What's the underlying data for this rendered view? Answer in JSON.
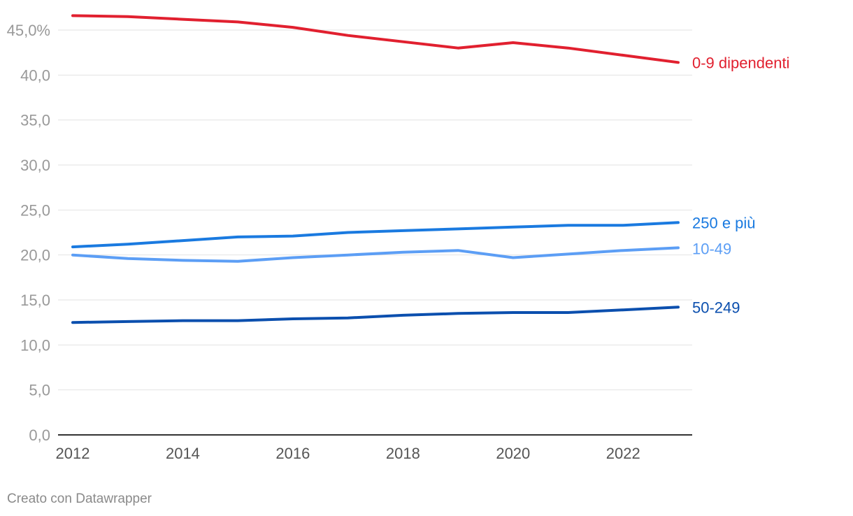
{
  "chart_data": {
    "type": "line",
    "x": [
      2012,
      2013,
      2014,
      2015,
      2016,
      2017,
      2018,
      2019,
      2020,
      2021,
      2022,
      2023
    ],
    "x_ticks": [
      "2012",
      "2014",
      "2016",
      "2018",
      "2020",
      "2022"
    ],
    "y_ticks": [
      "0,0",
      "5,0",
      "10,0",
      "15,0",
      "20,0",
      "25,0",
      "30,0",
      "35,0",
      "40,0",
      "45,0%"
    ],
    "ylim": [
      0,
      45
    ],
    "grid": true,
    "series": [
      {
        "name": "0-9 dipendenti",
        "color": "#e1202f",
        "values": [
          46.6,
          46.5,
          46.2,
          45.9,
          45.3,
          44.4,
          43.7,
          43.0,
          43.6,
          43.0,
          42.2,
          41.4
        ]
      },
      {
        "name": "250 e più",
        "color": "#1a7ae0",
        "values": [
          20.9,
          21.2,
          21.6,
          22.0,
          22.1,
          22.5,
          22.7,
          22.9,
          23.1,
          23.3,
          23.3,
          23.6
        ]
      },
      {
        "name": "10-49",
        "color": "#5c9ef5",
        "values": [
          20.0,
          19.6,
          19.4,
          19.3,
          19.7,
          20.0,
          20.3,
          20.5,
          19.7,
          20.1,
          20.5,
          20.8
        ]
      },
      {
        "name": "50-249",
        "color": "#0b4fae",
        "values": [
          12.5,
          12.6,
          12.7,
          12.7,
          12.9,
          13.0,
          13.3,
          13.5,
          13.6,
          13.6,
          13.9,
          14.2
        ]
      }
    ]
  },
  "footer": {
    "credit": "Creato con Datawrapper"
  }
}
